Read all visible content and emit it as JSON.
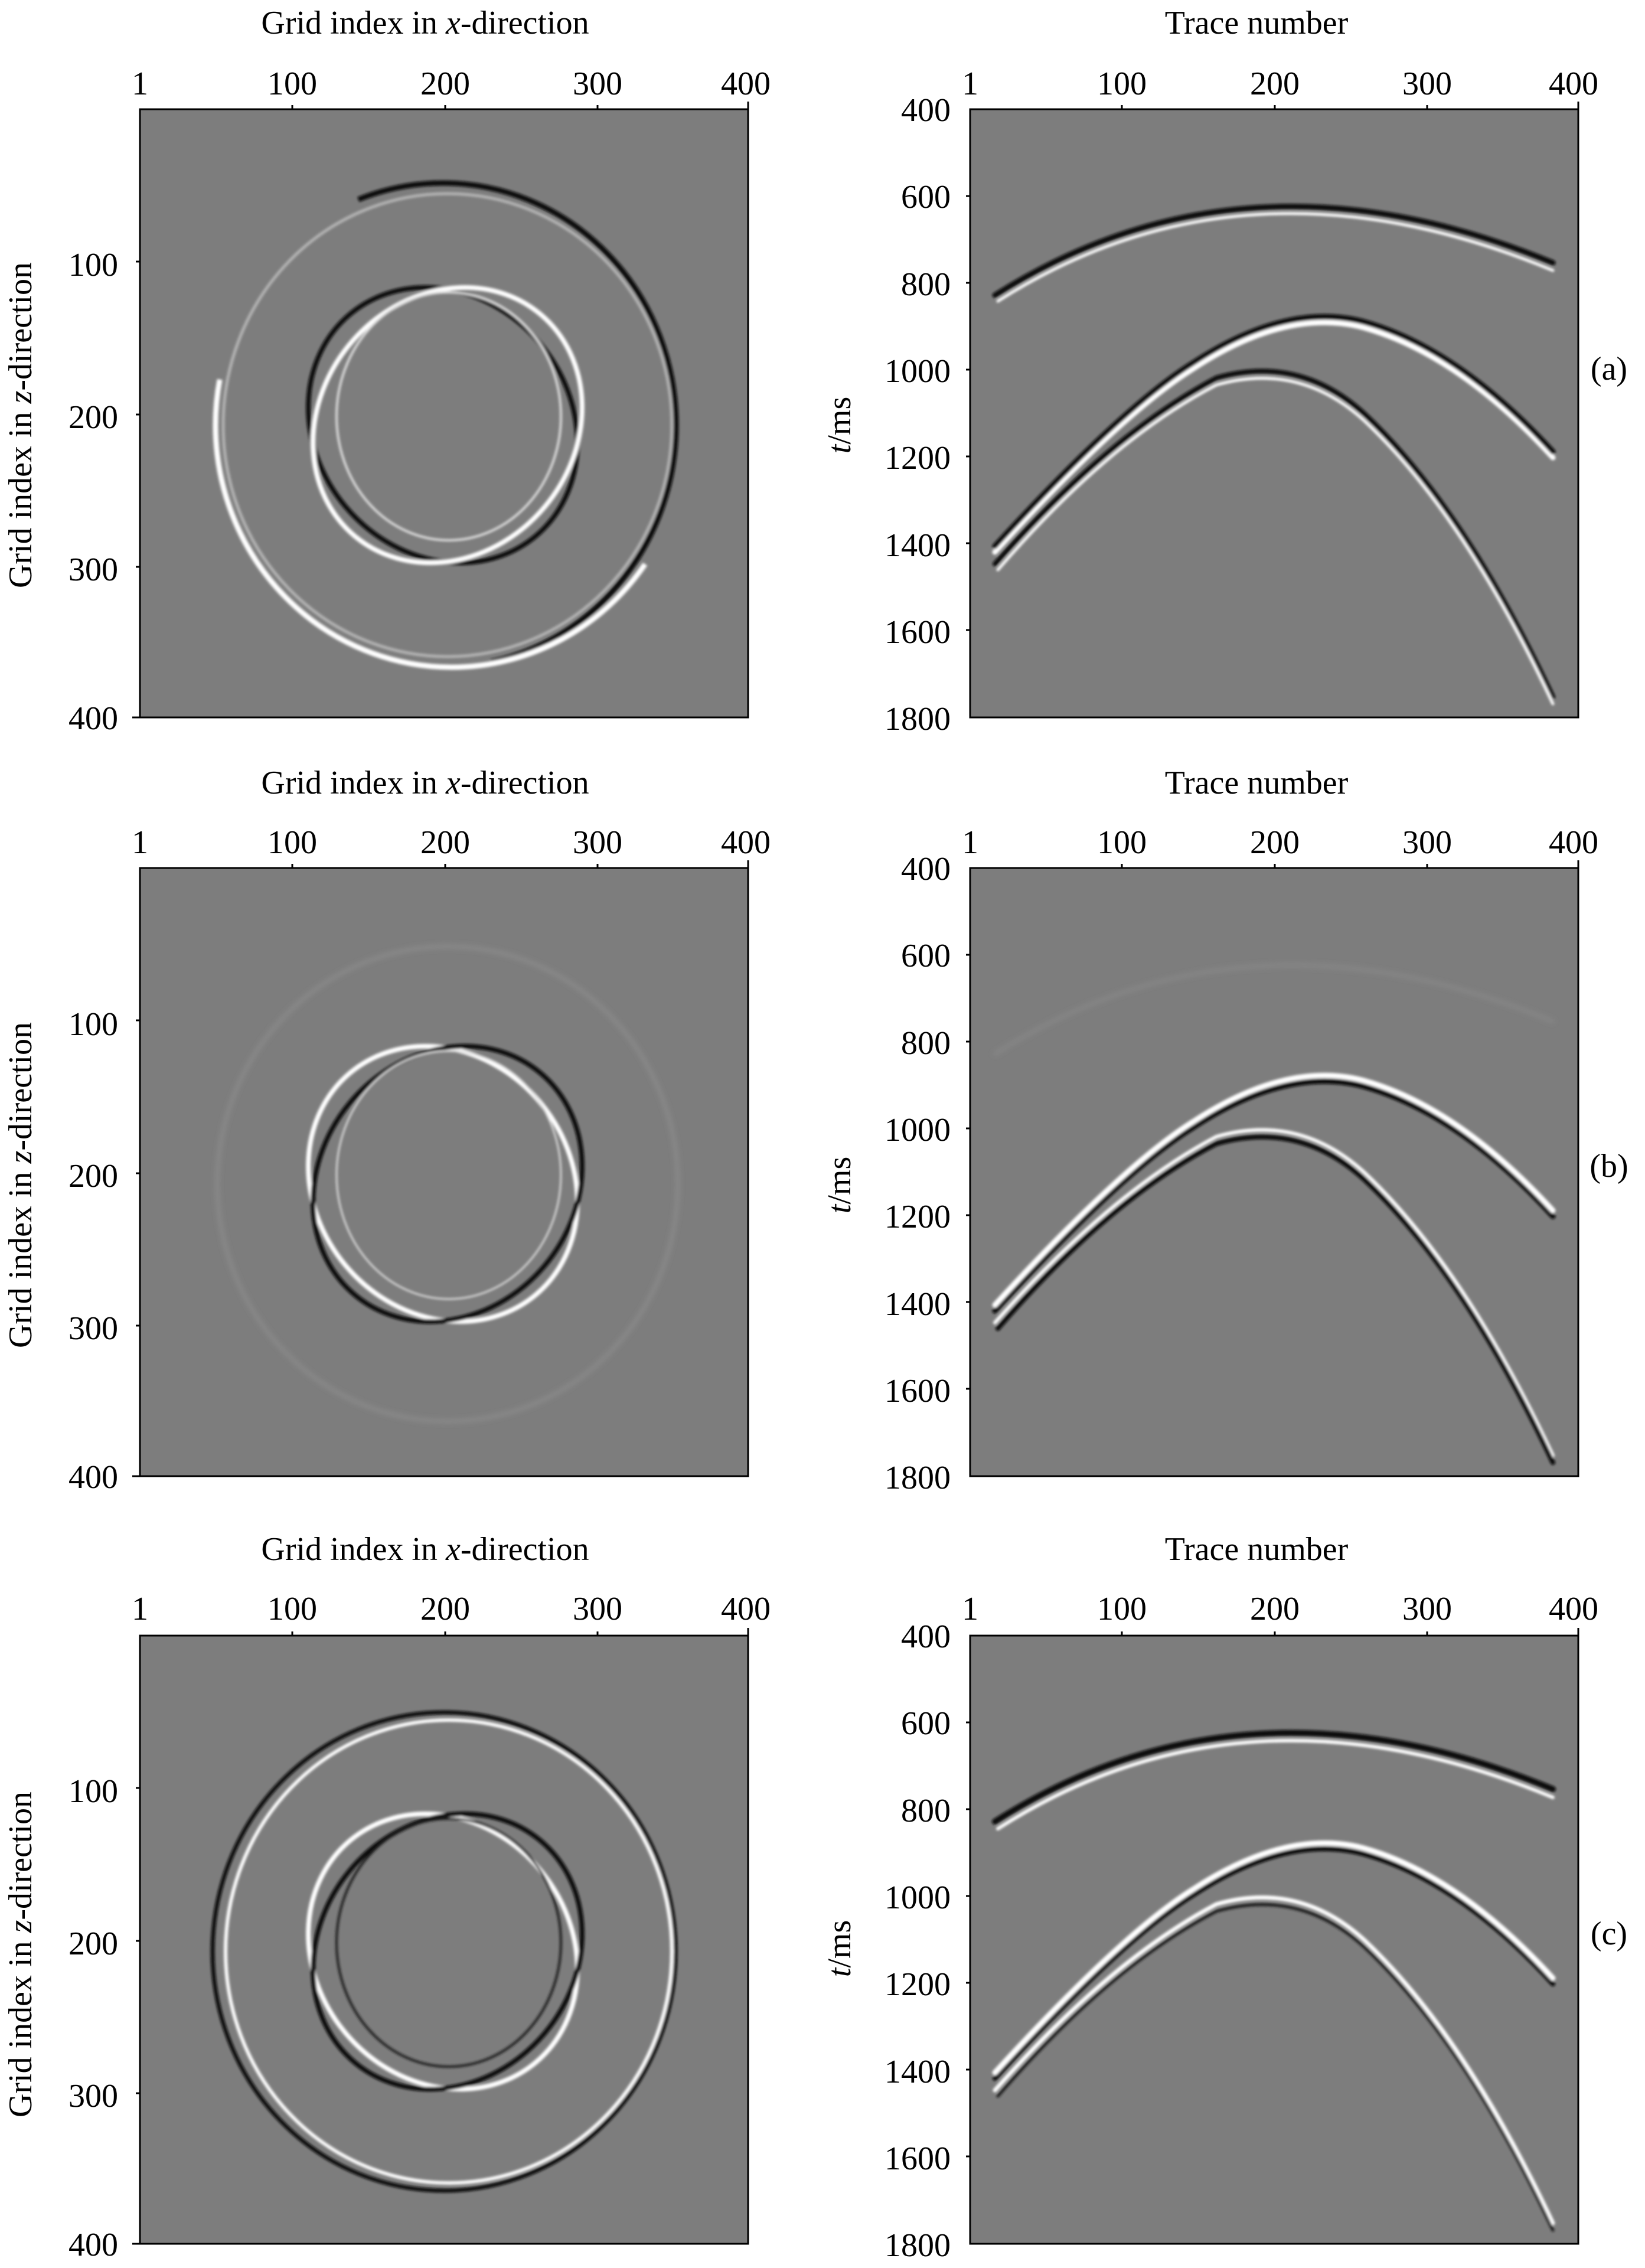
{
  "panels": [
    {
      "id": "a",
      "label": "(a)",
      "left": {
        "title_prefix": "Grid index in ",
        "title_var": "x",
        "title_suffix": "-direction",
        "ylabel_prefix": "Grid index in ",
        "ylabel_var": "z",
        "ylabel_suffix": "-direction",
        "xticks": [
          "1",
          "100",
          "200",
          "300",
          "400"
        ],
        "yticks": [
          "100",
          "200",
          "300",
          "400"
        ]
      },
      "right": {
        "title": "Trace number",
        "ylabel_var": "t",
        "ylabel_unit": "/ms",
        "xticks": [
          "1",
          "100",
          "200",
          "300",
          "400"
        ],
        "yticks": [
          "400",
          "600",
          "800",
          "1000",
          "1200",
          "1400",
          "1600",
          "1800"
        ]
      }
    },
    {
      "id": "b",
      "label": "(b)",
      "left": {
        "title_prefix": "Grid index in ",
        "title_var": "x",
        "title_suffix": "-direction",
        "ylabel_prefix": "Grid index in ",
        "ylabel_var": "z",
        "ylabel_suffix": "-direction",
        "xticks": [
          "1",
          "100",
          "200",
          "300",
          "400"
        ],
        "yticks": [
          "100",
          "200",
          "300",
          "400"
        ]
      },
      "right": {
        "title": "Trace number",
        "ylabel_var": "t",
        "ylabel_unit": "/ms",
        "xticks": [
          "1",
          "100",
          "200",
          "300",
          "400"
        ],
        "yticks": [
          "400",
          "600",
          "800",
          "1000",
          "1200",
          "1400",
          "1600",
          "1800"
        ]
      }
    },
    {
      "id": "c",
      "label": "(c)",
      "left": {
        "title_prefix": "Grid index in ",
        "title_var": "x",
        "title_suffix": "-direction",
        "ylabel_prefix": "Grid index in ",
        "ylabel_var": "z",
        "ylabel_suffix": "-direction",
        "xticks": [
          "1",
          "100",
          "200",
          "300",
          "400"
        ],
        "yticks": [
          "100",
          "200",
          "300",
          "400"
        ]
      },
      "right": {
        "title": "Trace number",
        "ylabel_var": "t",
        "ylabel_unit": "/ms",
        "xticks": [
          "1",
          "100",
          "200",
          "300",
          "400"
        ],
        "yticks": [
          "400",
          "600",
          "800",
          "1000",
          "1200",
          "1400",
          "1600",
          "1800"
        ]
      }
    }
  ],
  "colors": {
    "background_gray": "#7d7d7d",
    "dark_event": "#0a0a0a",
    "bright_event": "#ffffff",
    "axis": "#000000"
  }
}
